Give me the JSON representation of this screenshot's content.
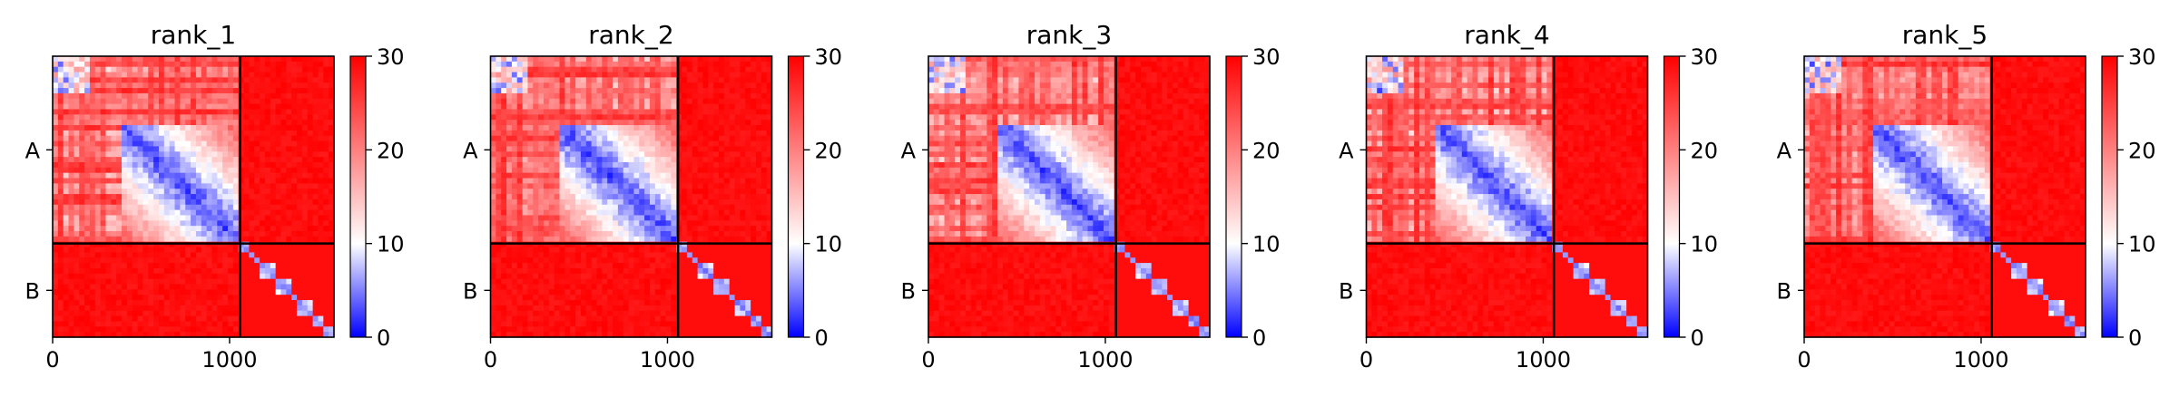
{
  "chart_data": {
    "type": "heatmap",
    "colormap": {
      "name": "bwr",
      "low": "#0000ff",
      "mid": "#ffffff",
      "high": "#ff0000"
    },
    "vmin": 0,
    "vmax": 30,
    "colorbar_ticks": [
      "0",
      "10",
      "20",
      "30"
    ],
    "x_ticks": [
      {
        "value": 0,
        "label": "0"
      },
      {
        "value": 1000,
        "label": "1000"
      }
    ],
    "x_range": [
      0,
      1590
    ],
    "chains": [
      {
        "label": "A",
        "start": 0,
        "end": 1060
      },
      {
        "label": "B",
        "start": 1060,
        "end": 1590
      }
    ],
    "grid": false,
    "panels": [
      {
        "title": "rank_1"
      },
      {
        "title": "rank_2"
      },
      {
        "title": "rank_3"
      },
      {
        "title": "rank_4"
      },
      {
        "title": "rank_5"
      }
    ]
  }
}
